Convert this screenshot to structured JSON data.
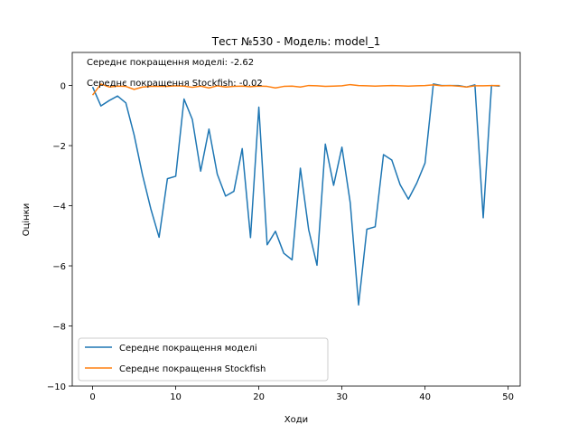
{
  "chart_data": {
    "type": "line",
    "title": "Тест №530 - Модель: model_1",
    "xlabel": "Ходи",
    "ylabel": "Оцінки",
    "xlim": [
      -2.45,
      51.45
    ],
    "ylim": [
      -10,
      1.1
    ],
    "xticks": [
      0,
      10,
      20,
      30,
      40,
      50
    ],
    "yticks": [
      -10,
      -8,
      -6,
      -4,
      -2,
      0
    ],
    "grid": false,
    "legend_position": "lower-left",
    "annotations": [
      "Середнє покращення моделі: -2.62",
      "Середнє покращення Stockfish: -0.02"
    ],
    "x": [
      0,
      1,
      2,
      3,
      4,
      5,
      6,
      7,
      8,
      9,
      10,
      11,
      12,
      13,
      14,
      15,
      16,
      17,
      18,
      19,
      20,
      21,
      22,
      23,
      24,
      25,
      26,
      27,
      28,
      29,
      30,
      31,
      32,
      33,
      34,
      35,
      36,
      37,
      38,
      39,
      40,
      41,
      42,
      43,
      44,
      45,
      46,
      47,
      48,
      49
    ],
    "series": [
      {
        "name": "Середнє покращення моделі",
        "color": "#1f77b4",
        "values": [
          -0.05,
          -0.68,
          -0.5,
          -0.35,
          -0.58,
          -1.65,
          -2.97,
          -4.1,
          -5.05,
          -3.1,
          -3.02,
          -0.45,
          -1.13,
          -2.85,
          -1.45,
          -2.95,
          -3.68,
          -3.52,
          -2.1,
          -5.06,
          -0.72,
          -5.3,
          -4.85,
          -5.58,
          -5.8,
          -2.75,
          -4.8,
          -5.98,
          -1.95,
          -3.32,
          -2.05,
          -3.9,
          -7.3,
          -4.78,
          -4.7,
          -2.3,
          -2.48,
          -3.3,
          -3.78,
          -3.25,
          -2.58,
          0.05,
          0.0,
          0.0,
          0.0,
          -0.05,
          0.02,
          -4.4,
          0.0,
          -0.02
        ]
      },
      {
        "name": "Середнє покращення Stockfish",
        "color": "#ff7f0e",
        "values": [
          -0.32,
          0.05,
          -0.05,
          -0.02,
          -0.03,
          -0.13,
          -0.05,
          -0.03,
          -0.03,
          -0.03,
          -0.01,
          -0.02,
          -0.06,
          -0.02,
          -0.08,
          -0.01,
          -0.05,
          -0.03,
          -0.02,
          -0.04,
          -0.02,
          -0.03,
          -0.08,
          -0.03,
          -0.02,
          -0.05,
          0.0,
          -0.01,
          -0.03,
          -0.02,
          -0.01,
          0.03,
          0.0,
          -0.01,
          -0.02,
          -0.01,
          0.0,
          -0.01,
          -0.02,
          -0.01,
          0.0,
          0.02,
          -0.01,
          0.0,
          -0.02,
          -0.05,
          -0.01,
          -0.01,
          0.0,
          0.0
        ]
      }
    ]
  }
}
